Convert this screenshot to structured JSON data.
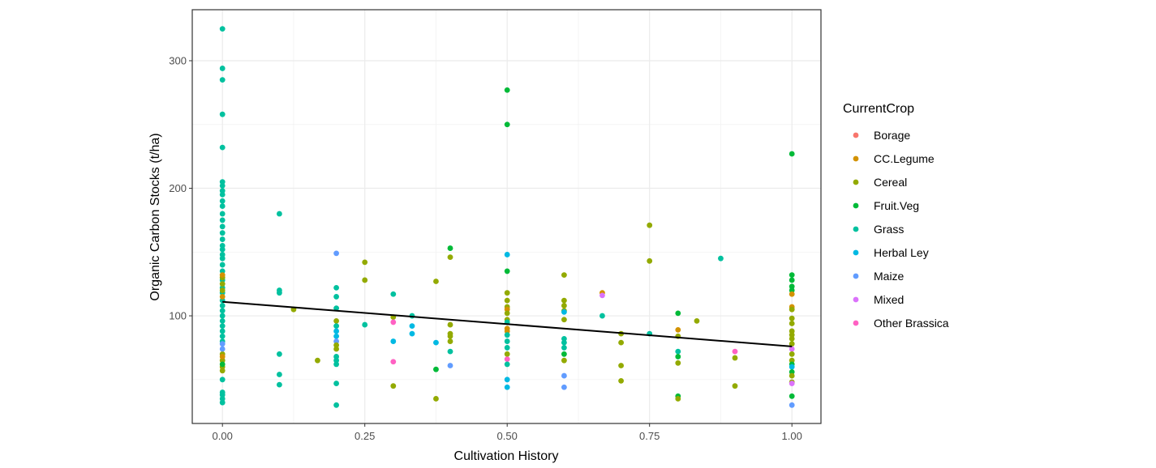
{
  "chart_data": {
    "type": "scatter",
    "title": "",
    "xlabel": "Cultivation History",
    "ylabel": "Organic Carbon Stocks (t/ha)",
    "xlim": [
      -0.053,
      1.051
    ],
    "ylim": [
      15.6,
      340
    ],
    "xticks": [
      0,
      0.25,
      0.5,
      0.75,
      1
    ],
    "xtick_labels": [
      "0.00",
      "0.25",
      "0.50",
      "0.75",
      "1.00"
    ],
    "yticks": [
      100,
      200,
      300
    ],
    "ytick_labels": [
      "100",
      "200",
      "300"
    ],
    "grid": true,
    "legend": {
      "title": "CurrentCrop",
      "placement": "right",
      "entries": [
        "Borage",
        "CC.Legume",
        "Cereal",
        "Fruit.Veg",
        "Grass",
        "Herbal Ley",
        "Maize",
        "Mixed",
        "Other Brassica"
      ],
      "colors": [
        "#F8766D",
        "#D39200",
        "#93AA00",
        "#00BA38",
        "#00C19F",
        "#00B9E3",
        "#619CFF",
        "#DB72FB",
        "#FF61C3"
      ]
    },
    "trend_line": {
      "x": [
        0,
        1
      ],
      "y": [
        111,
        76
      ]
    },
    "points_format": [
      "x",
      "y",
      "crop_index"
    ],
    "points": [
      [
        0,
        325,
        4
      ],
      [
        0,
        294,
        4
      ],
      [
        0,
        285,
        4
      ],
      [
        0,
        258,
        4
      ],
      [
        0,
        232,
        4
      ],
      [
        0,
        205,
        4
      ],
      [
        0,
        202,
        4
      ],
      [
        0,
        198,
        4
      ],
      [
        0,
        195,
        4
      ],
      [
        0,
        190,
        4
      ],
      [
        0,
        186,
        4
      ],
      [
        0,
        180,
        4
      ],
      [
        0,
        175,
        4
      ],
      [
        0,
        170,
        4
      ],
      [
        0,
        165,
        4
      ],
      [
        0,
        160,
        4
      ],
      [
        0,
        155,
        4
      ],
      [
        0,
        152,
        4
      ],
      [
        0,
        148,
        4
      ],
      [
        0,
        145,
        4
      ],
      [
        0,
        140,
        4
      ],
      [
        0,
        135,
        4
      ],
      [
        0,
        128,
        4
      ],
      [
        0,
        122,
        4
      ],
      [
        0,
        118,
        4
      ],
      [
        0,
        112,
        4
      ],
      [
        0,
        108,
        4
      ],
      [
        0,
        104,
        4
      ],
      [
        0,
        100,
        4
      ],
      [
        0,
        96,
        4
      ],
      [
        0,
        92,
        4
      ],
      [
        0,
        88,
        4
      ],
      [
        0,
        84,
        4
      ],
      [
        0,
        80,
        4
      ],
      [
        0,
        50,
        4
      ],
      [
        0,
        40,
        4
      ],
      [
        0,
        38,
        4
      ],
      [
        0,
        35,
        4
      ],
      [
        0,
        32,
        4
      ],
      [
        0,
        130,
        2
      ],
      [
        0,
        125,
        2
      ],
      [
        0,
        120,
        2
      ],
      [
        0,
        70,
        2
      ],
      [
        0,
        65,
        2
      ],
      [
        0,
        60,
        2
      ],
      [
        0,
        57,
        2
      ],
      [
        0,
        132,
        1
      ],
      [
        0,
        115,
        1
      ],
      [
        0,
        68,
        1
      ],
      [
        0,
        78,
        6
      ],
      [
        0,
        74,
        6
      ],
      [
        0,
        62,
        3
      ],
      [
        0.1,
        180,
        4
      ],
      [
        0.1,
        120,
        4
      ],
      [
        0.1,
        118,
        4
      ],
      [
        0.1,
        70,
        4
      ],
      [
        0.1,
        54,
        4
      ],
      [
        0.1,
        46,
        4
      ],
      [
        0.125,
        105,
        2
      ],
      [
        0.167,
        65,
        2
      ],
      [
        0.2,
        149,
        6
      ],
      [
        0.2,
        122,
        4
      ],
      [
        0.2,
        115,
        4
      ],
      [
        0.2,
        106,
        4
      ],
      [
        0.2,
        96,
        2
      ],
      [
        0.2,
        92,
        4
      ],
      [
        0.2,
        88,
        5
      ],
      [
        0.2,
        84,
        5
      ],
      [
        0.2,
        80,
        6
      ],
      [
        0.2,
        77,
        2
      ],
      [
        0.2,
        74,
        2
      ],
      [
        0.2,
        68,
        4
      ],
      [
        0.2,
        65,
        4
      ],
      [
        0.2,
        62,
        4
      ],
      [
        0.2,
        47,
        4
      ],
      [
        0.2,
        30,
        4
      ],
      [
        0.25,
        142,
        2
      ],
      [
        0.25,
        128,
        2
      ],
      [
        0.25,
        93,
        4
      ],
      [
        0.3,
        117,
        4
      ],
      [
        0.3,
        99,
        2
      ],
      [
        0.3,
        95,
        8
      ],
      [
        0.3,
        80,
        5
      ],
      [
        0.3,
        64,
        8
      ],
      [
        0.3,
        45,
        2
      ],
      [
        0.333,
        100,
        4
      ],
      [
        0.333,
        92,
        5
      ],
      [
        0.333,
        86,
        5
      ],
      [
        0.375,
        127,
        2
      ],
      [
        0.375,
        79,
        5
      ],
      [
        0.375,
        58,
        3
      ],
      [
        0.375,
        35,
        2
      ],
      [
        0.4,
        153,
        3
      ],
      [
        0.4,
        146,
        2
      ],
      [
        0.4,
        93,
        2
      ],
      [
        0.4,
        86,
        2
      ],
      [
        0.4,
        84,
        2
      ],
      [
        0.4,
        80,
        2
      ],
      [
        0.4,
        72,
        4
      ],
      [
        0.4,
        61,
        6
      ],
      [
        0.5,
        277,
        3
      ],
      [
        0.5,
        250,
        3
      ],
      [
        0.5,
        148,
        5
      ],
      [
        0.5,
        135,
        3
      ],
      [
        0.5,
        118,
        2
      ],
      [
        0.5,
        112,
        2
      ],
      [
        0.5,
        107,
        2
      ],
      [
        0.5,
        105,
        1
      ],
      [
        0.5,
        102,
        2
      ],
      [
        0.5,
        97,
        2
      ],
      [
        0.5,
        95,
        4
      ],
      [
        0.5,
        90,
        1
      ],
      [
        0.5,
        88,
        1
      ],
      [
        0.5,
        85,
        4
      ],
      [
        0.5,
        80,
        4
      ],
      [
        0.5,
        75,
        4
      ],
      [
        0.5,
        70,
        2
      ],
      [
        0.5,
        66,
        8
      ],
      [
        0.5,
        62,
        4
      ],
      [
        0.5,
        50,
        5
      ],
      [
        0.5,
        44,
        5
      ],
      [
        0.6,
        132,
        2
      ],
      [
        0.6,
        112,
        2
      ],
      [
        0.6,
        108,
        2
      ],
      [
        0.6,
        104,
        2
      ],
      [
        0.6,
        103,
        5
      ],
      [
        0.6,
        97,
        2
      ],
      [
        0.6,
        82,
        4
      ],
      [
        0.6,
        79,
        4
      ],
      [
        0.6,
        75,
        4
      ],
      [
        0.6,
        70,
        3
      ],
      [
        0.6,
        65,
        2
      ],
      [
        0.6,
        53,
        6
      ],
      [
        0.6,
        44,
        6
      ],
      [
        0.667,
        118,
        1
      ],
      [
        0.667,
        116,
        7
      ],
      [
        0.667,
        100,
        4
      ],
      [
        0.7,
        86,
        2
      ],
      [
        0.7,
        79,
        2
      ],
      [
        0.7,
        61,
        2
      ],
      [
        0.7,
        49,
        2
      ],
      [
        0.75,
        171,
        2
      ],
      [
        0.75,
        143,
        2
      ],
      [
        0.75,
        86,
        4
      ],
      [
        0.8,
        102,
        3
      ],
      [
        0.8,
        89,
        1
      ],
      [
        0.8,
        84,
        2
      ],
      [
        0.8,
        72,
        4
      ],
      [
        0.8,
        68,
        3
      ],
      [
        0.8,
        63,
        2
      ],
      [
        0.8,
        37,
        3
      ],
      [
        0.8,
        35,
        2
      ],
      [
        0.833,
        96,
        2
      ],
      [
        0.875,
        145,
        4
      ],
      [
        0.9,
        72,
        8
      ],
      [
        0.9,
        67,
        2
      ],
      [
        0.9,
        45,
        2
      ],
      [
        1,
        227,
        3
      ],
      [
        1,
        132,
        3
      ],
      [
        1,
        128,
        3
      ],
      [
        1,
        123,
        3
      ],
      [
        1,
        120,
        3
      ],
      [
        1,
        117,
        1
      ],
      [
        1,
        107,
        1
      ],
      [
        1,
        105,
        2
      ],
      [
        1,
        98,
        2
      ],
      [
        1,
        94,
        2
      ],
      [
        1,
        88,
        2
      ],
      [
        1,
        85,
        2
      ],
      [
        1,
        82,
        2
      ],
      [
        1,
        78,
        2
      ],
      [
        1,
        74,
        7
      ],
      [
        1,
        70,
        2
      ],
      [
        1,
        65,
        2
      ],
      [
        1,
        62,
        3
      ],
      [
        1,
        60,
        5
      ],
      [
        1,
        56,
        3
      ],
      [
        1,
        53,
        2
      ],
      [
        1,
        48,
        2
      ],
      [
        1,
        47,
        7
      ],
      [
        1,
        37,
        3
      ],
      [
        1,
        30,
        6
      ]
    ]
  }
}
